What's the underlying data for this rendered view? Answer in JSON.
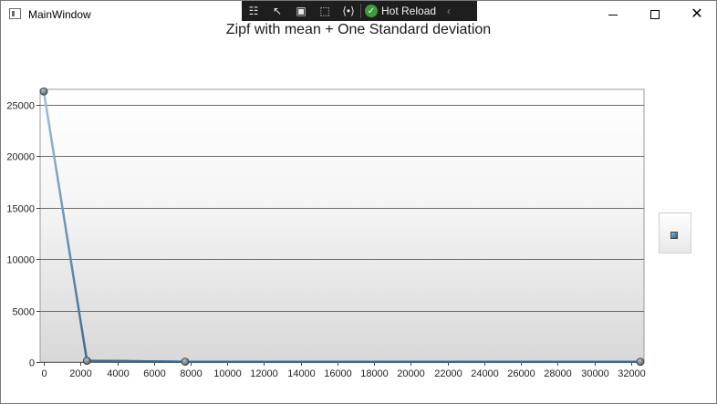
{
  "window": {
    "title": "MainWindow",
    "minimize_icon": "minimize-icon",
    "maximize_icon": "maximize-icon",
    "close_icon": "close-icon"
  },
  "devtoolbar": {
    "icons": [
      "live-visual-tree-icon",
      "select-element-icon",
      "display-layout-adorners-icon",
      "track-focus-icon",
      "binding-failures-icon"
    ],
    "hot_reload_label": "Hot Reload",
    "hot_reload_status_icon": "check-icon"
  },
  "colors": {
    "line": "#3b6a94",
    "line_top": "#9fbfd8",
    "marker": "#5a6770",
    "grid": "#6e6e6e"
  },
  "chart_data": {
    "type": "line",
    "title": "Zipf with mean + One Standard deviation",
    "xlabel": "",
    "ylabel": "",
    "x": [
      0,
      2350,
      7700,
      32500
    ],
    "series": [
      {
        "values": [
          26300,
          120,
          30,
          25
        ]
      }
    ],
    "xlim": [
      -200,
      32700
    ],
    "ylim": [
      0,
      26500
    ],
    "xticks": [
      0,
      2000,
      4000,
      6000,
      8000,
      10000,
      12000,
      14000,
      16000,
      18000,
      20000,
      22000,
      24000,
      26000,
      28000,
      30000,
      32000
    ],
    "yticks": [
      0,
      5000,
      10000,
      15000,
      20000,
      25000
    ],
    "grid": true,
    "legend": "right"
  }
}
